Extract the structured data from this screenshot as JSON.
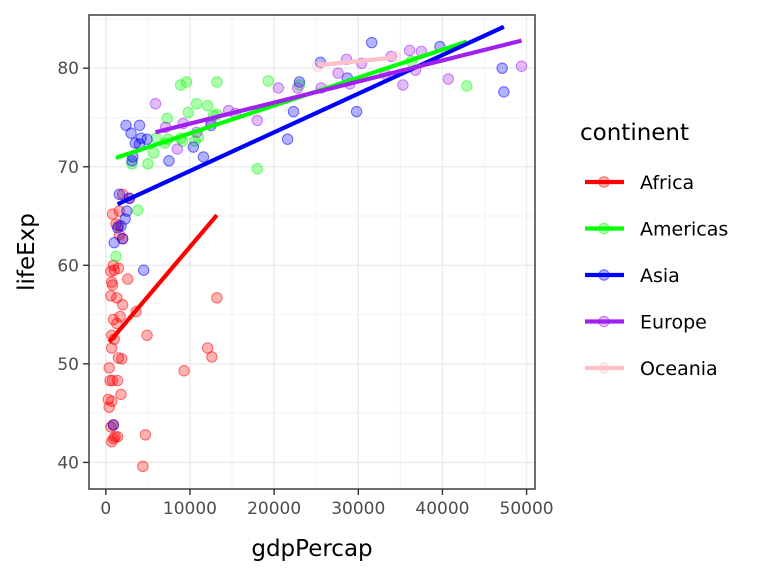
{
  "chart_data": {
    "type": "scatter",
    "title": "",
    "xlabel": "gdpPercap",
    "ylabel": "lifeExp",
    "xlim": [
      -2000,
      51000
    ],
    "ylim": [
      37.3,
      85.4
    ],
    "x_ticks": [
      0,
      10000,
      20000,
      30000,
      40000,
      50000
    ],
    "y_ticks": [
      40,
      50,
      60,
      70,
      80
    ],
    "grid": true,
    "legend": {
      "title": "continent",
      "position": "right"
    },
    "point_alpha": 0.3,
    "series": [
      {
        "name": "Africa",
        "color": "#ff0000",
        "points": [
          [
            700,
            42.1
          ],
          [
            900,
            42.4
          ],
          [
            1100,
            42.6
          ],
          [
            1400,
            42.6
          ],
          [
            4700,
            42.8
          ],
          [
            4400,
            39.6
          ],
          [
            600,
            43.6
          ],
          [
            900,
            43.8
          ],
          [
            400,
            45.6
          ],
          [
            700,
            46.2
          ],
          [
            300,
            46.4
          ],
          [
            1800,
            46.9
          ],
          [
            500,
            48.3
          ],
          [
            800,
            48.3
          ],
          [
            1400,
            48.3
          ],
          [
            9300,
            49.3
          ],
          [
            400,
            49.6
          ],
          [
            1500,
            50.6
          ],
          [
            1900,
            50.5
          ],
          [
            12600,
            50.7
          ],
          [
            12100,
            51.6
          ],
          [
            700,
            51.6
          ],
          [
            1000,
            52.5
          ],
          [
            700,
            52.9
          ],
          [
            4900,
            52.9
          ],
          [
            1300,
            54.1
          ],
          [
            900,
            54.5
          ],
          [
            1700,
            54.8
          ],
          [
            3600,
            55.3
          ],
          [
            2000,
            56.0
          ],
          [
            13200,
            56.7
          ],
          [
            600,
            56.9
          ],
          [
            1300,
            56.7
          ],
          [
            800,
            58.0
          ],
          [
            700,
            58.3
          ],
          [
            2600,
            58.6
          ],
          [
            600,
            59.4
          ],
          [
            1000,
            59.5
          ],
          [
            1500,
            59.7
          ],
          [
            900,
            60.0
          ],
          [
            2000,
            62.7
          ],
          [
            1600,
            63.1
          ],
          [
            1500,
            64.0
          ],
          [
            1200,
            64.2
          ],
          [
            800,
            65.2
          ],
          [
            1600,
            65.5
          ],
          [
            2000,
            67.2
          ],
          [
            2800,
            66.8
          ]
        ],
        "trend": [
          [
            400,
            52.2
          ],
          [
            13200,
            65.1
          ]
        ]
      },
      {
        "name": "Americas",
        "color": "#00ff00",
        "points": [
          [
            1200,
            60.9
          ],
          [
            3800,
            65.6
          ],
          [
            3100,
            70.3
          ],
          [
            5700,
            71.4
          ],
          [
            6000,
            72.9
          ],
          [
            7000,
            72.4
          ],
          [
            7400,
            72.8
          ],
          [
            8900,
            72.9
          ],
          [
            9100,
            72.6
          ],
          [
            10600,
            72.6
          ],
          [
            11000,
            73.0
          ],
          [
            7300,
            74.9
          ],
          [
            9800,
            75.5
          ],
          [
            12800,
            75.2
          ],
          [
            13200,
            75.3
          ],
          [
            10800,
            76.4
          ],
          [
            12100,
            76.2
          ],
          [
            18000,
            69.8
          ],
          [
            8900,
            78.3
          ],
          [
            9600,
            78.6
          ],
          [
            13200,
            78.6
          ],
          [
            19300,
            78.7
          ],
          [
            23000,
            78.3
          ],
          [
            36300,
            80.7
          ],
          [
            42900,
            78.2
          ],
          [
            5000,
            70.3
          ]
        ],
        "trend": [
          [
            1200,
            70.9
          ],
          [
            42900,
            82.7
          ]
        ]
      },
      {
        "name": "Asia",
        "color": "#0000ff",
        "points": [
          [
            900,
            43.8
          ],
          [
            1000,
            62.3
          ],
          [
            1400,
            63.8
          ],
          [
            1800,
            64.0
          ],
          [
            2000,
            62.7
          ],
          [
            2300,
            64.7
          ],
          [
            2500,
            65.5
          ],
          [
            1600,
            67.2
          ],
          [
            2800,
            66.8
          ],
          [
            4500,
            59.5
          ],
          [
            3100,
            70.6
          ],
          [
            3200,
            71.0
          ],
          [
            3500,
            72.4
          ],
          [
            4000,
            72.3
          ],
          [
            4200,
            72.9
          ],
          [
            4900,
            72.8
          ],
          [
            2400,
            74.2
          ],
          [
            4000,
            74.2
          ],
          [
            3000,
            73.4
          ],
          [
            7500,
            70.6
          ],
          [
            10400,
            72.0
          ],
          [
            11600,
            71.0
          ],
          [
            12500,
            74.2
          ],
          [
            21600,
            72.8
          ],
          [
            22300,
            75.6
          ],
          [
            23000,
            78.6
          ],
          [
            25500,
            80.6
          ],
          [
            28700,
            79.0
          ],
          [
            29800,
            75.6
          ],
          [
            31600,
            82.6
          ],
          [
            39700,
            82.2
          ],
          [
            47100,
            80.0
          ],
          [
            47300,
            77.6
          ]
        ],
        "trend": [
          [
            1400,
            66.2
          ],
          [
            47300,
            84.2
          ]
        ]
      },
      {
        "name": "Europe",
        "color": "#a020f0",
        "points": [
          [
            5900,
            76.4
          ],
          [
            7100,
            74.0
          ],
          [
            8500,
            71.8
          ],
          [
            9200,
            74.4
          ],
          [
            10800,
            73.5
          ],
          [
            12500,
            74.5
          ],
          [
            14600,
            75.7
          ],
          [
            15400,
            75.4
          ],
          [
            18000,
            74.7
          ],
          [
            20500,
            78.0
          ],
          [
            22800,
            78.0
          ],
          [
            25600,
            78.0
          ],
          [
            27600,
            79.5
          ],
          [
            28600,
            80.9
          ],
          [
            30400,
            80.5
          ],
          [
            33200,
            79.4
          ],
          [
            33900,
            81.2
          ],
          [
            35300,
            78.3
          ],
          [
            36100,
            81.8
          ],
          [
            36800,
            79.8
          ],
          [
            37500,
            81.7
          ],
          [
            40700,
            78.9
          ],
          [
            49400,
            80.2
          ],
          [
            29000,
            78.4
          ]
        ],
        "trend": [
          [
            5900,
            73.5
          ],
          [
            49400,
            82.8
          ]
        ]
      },
      {
        "name": "Oceania",
        "color": "#ffc0cb",
        "points": [
          [
            25200,
            80.2
          ],
          [
            34400,
            81.2
          ]
        ],
        "trend": [
          [
            25200,
            80.3
          ],
          [
            34400,
            81.1
          ]
        ]
      }
    ]
  }
}
